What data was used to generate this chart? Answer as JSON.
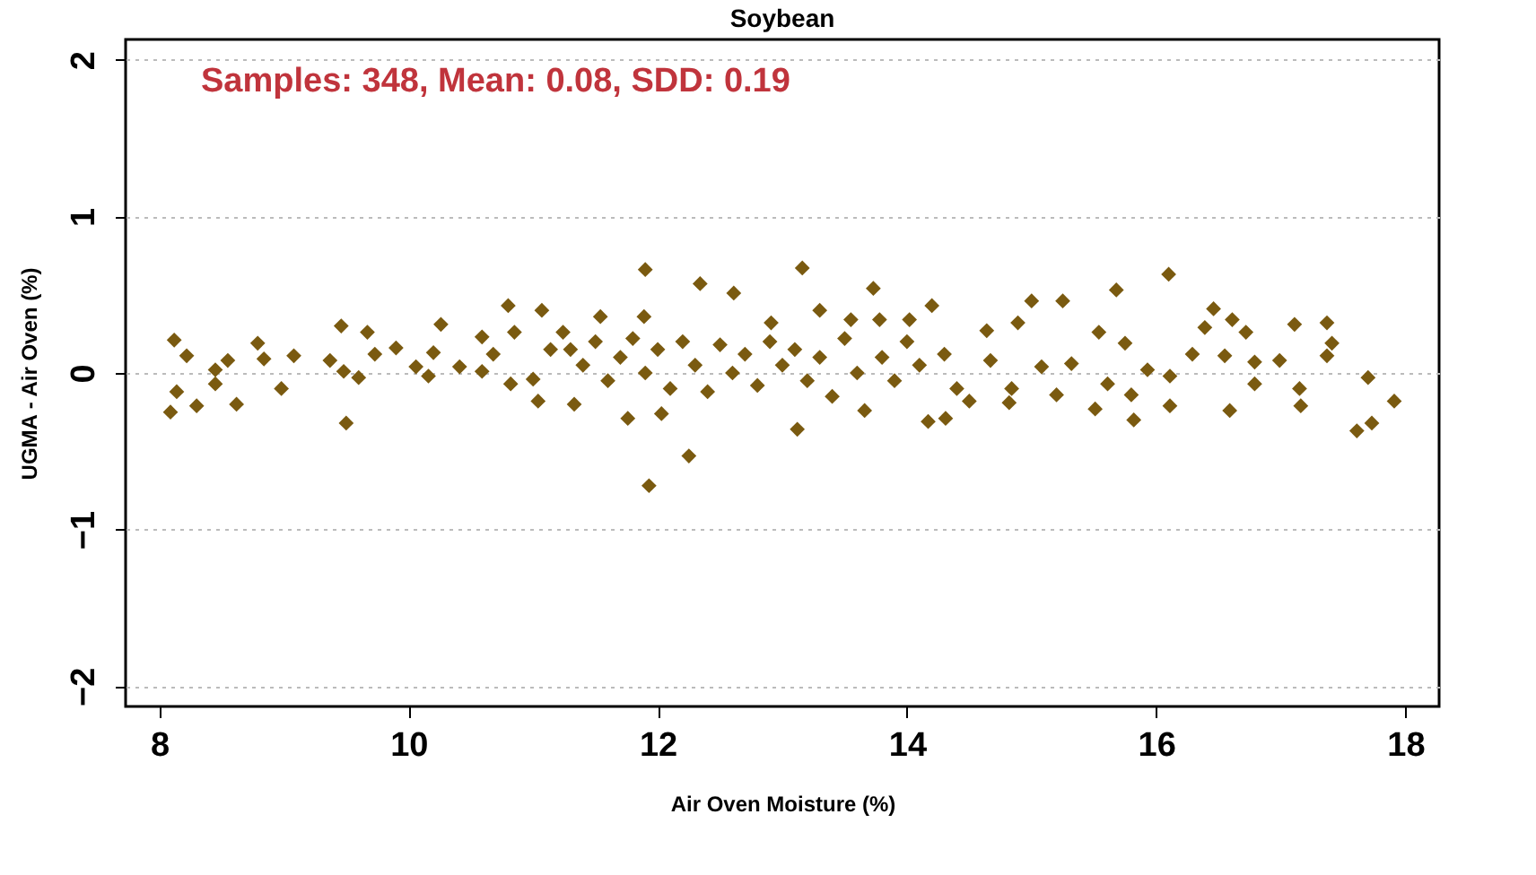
{
  "chart_data": {
    "type": "scatter",
    "title": "Soybean",
    "xlabel": "Air Oven Moisture (%)",
    "ylabel": "UGMA - Air Oven (%)",
    "annotations": [
      "Samples: 348,  Mean: 0.08,  SDD: 0.19"
    ],
    "xlim": [
      7.73,
      18.27
    ],
    "xticks": [
      8,
      10,
      12,
      14,
      16,
      18
    ],
    "ylim": [
      -2.13,
      2.13
    ],
    "yticks": [
      -2,
      -1,
      0,
      1,
      2
    ],
    "grid": "y",
    "marker": "diamond",
    "series": [
      {
        "color": "#7a5a10",
        "x": [
          8.12,
          8.22,
          8.14,
          8.09,
          8.3,
          8.45,
          8.55,
          8.45,
          8.62,
          8.79,
          8.84,
          8.98,
          9.08,
          9.37,
          9.46,
          9.48,
          9.5,
          9.6,
          9.67,
          9.73,
          9.9,
          10.06,
          10.16,
          10.2,
          10.26,
          10.41,
          10.59,
          10.59,
          10.68,
          10.8,
          10.85,
          10.82,
          11.0,
          11.04,
          11.07,
          11.14,
          11.24,
          11.9,
          12.34,
          12.61,
          13.16,
          13.73,
          11.33,
          11.76,
          12.03,
          12.25,
          11.93,
          13.12,
          13.66,
          14.17,
          14.31,
          14.5,
          11.54,
          11.89,
          12.91,
          13.3,
          13.55,
          13.78,
          14.2,
          14.02,
          11.3,
          11.4,
          11.5,
          11.6,
          11.7,
          11.8,
          11.9,
          12.0,
          12.1,
          12.2,
          12.3,
          12.4,
          12.5,
          12.6,
          12.7,
          12.8,
          12.9,
          13.0,
          13.1,
          13.2,
          13.3,
          13.4,
          13.5,
          13.6,
          13.8,
          13.9,
          14.0,
          14.1,
          14.3,
          14.4,
          16.1,
          15.68,
          15.0,
          15.25,
          14.89,
          14.64,
          14.67,
          14.84,
          14.82,
          15.08,
          15.2,
          15.32,
          15.54,
          15.51,
          15.61,
          15.75,
          15.8,
          15.82,
          15.93,
          16.11,
          16.11,
          16.29,
          16.39,
          16.46,
          16.55,
          16.61,
          16.72,
          16.59,
          16.79,
          16.79,
          16.99,
          17.11,
          17.15,
          17.16,
          17.37,
          17.41,
          17.37,
          17.7,
          17.91,
          17.73,
          17.61
        ],
        "values": [
          0.21,
          0.11,
          -0.12,
          -0.25,
          -0.21,
          0.02,
          0.08,
          -0.07,
          -0.2,
          0.19,
          0.09,
          -0.1,
          0.11,
          0.08,
          0.3,
          0.01,
          -0.32,
          -0.03,
          0.26,
          0.12,
          0.16,
          0.04,
          -0.02,
          0.13,
          0.31,
          0.04,
          0.23,
          0.01,
          0.12,
          0.43,
          0.26,
          -0.07,
          -0.04,
          -0.18,
          0.4,
          0.15,
          0.26,
          0.66,
          0.57,
          0.51,
          0.67,
          0.54,
          -0.2,
          -0.29,
          -0.26,
          -0.53,
          -0.72,
          -0.36,
          -0.24,
          -0.31,
          -0.29,
          -0.18,
          0.36,
          0.36,
          0.32,
          0.4,
          0.34,
          0.34,
          0.43,
          0.34,
          0.15,
          0.05,
          0.2,
          -0.05,
          0.1,
          0.22,
          0.0,
          0.15,
          -0.1,
          0.2,
          0.05,
          -0.12,
          0.18,
          0.0,
          0.12,
          -0.08,
          0.2,
          0.05,
          0.15,
          -0.05,
          0.1,
          -0.15,
          0.22,
          0.0,
          0.1,
          -0.05,
          0.2,
          0.05,
          0.12,
          -0.1,
          0.63,
          0.53,
          0.46,
          0.46,
          0.32,
          0.27,
          0.08,
          -0.1,
          -0.19,
          0.04,
          -0.14,
          0.06,
          0.26,
          -0.23,
          -0.07,
          0.19,
          -0.14,
          -0.3,
          0.02,
          -0.02,
          -0.21,
          0.12,
          0.29,
          0.41,
          0.11,
          0.34,
          0.26,
          -0.24,
          0.07,
          -0.07,
          0.08,
          0.31,
          -0.1,
          -0.21,
          0.32,
          0.19,
          0.11,
          -0.03,
          -0.18,
          -0.32,
          -0.37
        ]
      }
    ]
  }
}
